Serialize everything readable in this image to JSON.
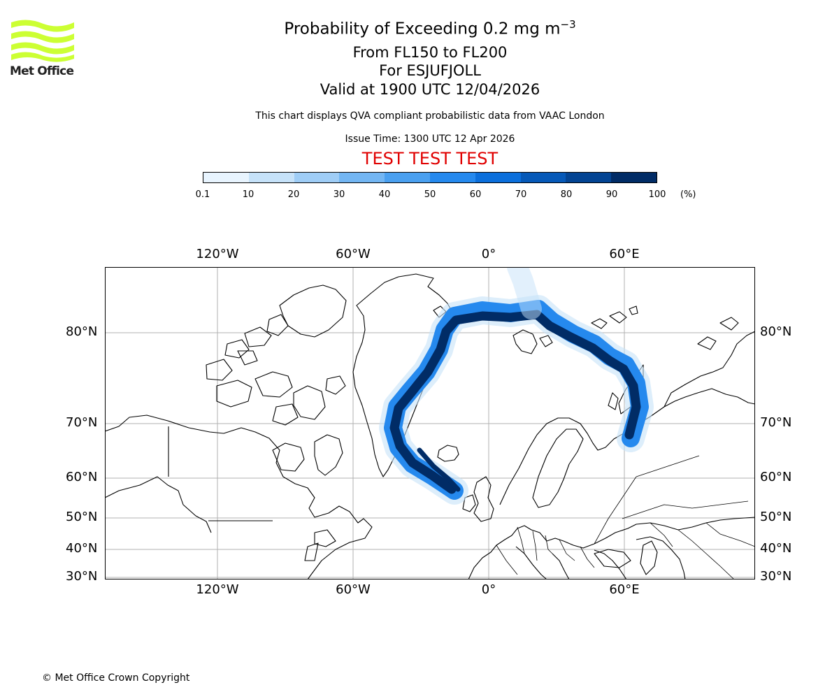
{
  "logo": {
    "text": "Met Office",
    "color": "#ccff33"
  },
  "title": {
    "main": "Probability of Exceeding 0.2 mg m",
    "exponent": "−3"
  },
  "subtitle": {
    "levels": "From FL150 to FL200",
    "volcano": "For ESJUFJOLL",
    "valid": "Valid at 1900 UTC 12/04/2026"
  },
  "description": "This chart displays QVA compliant probabilistic data from VAAC London",
  "issue_time": "Issue Time: 1300 UTC 12 Apr 2026",
  "test_banner": "TEST TEST TEST",
  "colorbar": {
    "ticks": [
      "0.1",
      "10",
      "20",
      "30",
      "40",
      "50",
      "60",
      "70",
      "80",
      "90",
      "100"
    ],
    "unit": "(%)",
    "colors": [
      "#e8f4fe",
      "#c6e2f9",
      "#9fcdf6",
      "#73b6f3",
      "#4aa0f0",
      "#2589ee",
      "#0b6fdc",
      "#0659b8",
      "#034493",
      "#012c66"
    ]
  },
  "map": {
    "lon_labels_top": [
      "120°W",
      "60°W",
      "0°",
      "60°E"
    ],
    "lon_labels_bottom": [
      "120°W",
      "60°W",
      "0°",
      "60°E"
    ],
    "lat_labels": [
      "80°N",
      "70°N",
      "60°N",
      "50°N",
      "40°N",
      "30°N"
    ],
    "plume_colors": {
      "light": "#c6e2f9",
      "mid": "#2589ee",
      "dark": "#012c66"
    }
  },
  "copyright": "© Met Office Crown Copyright"
}
